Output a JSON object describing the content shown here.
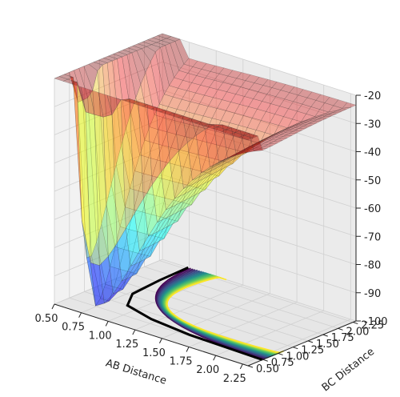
{
  "chart_data": {
    "type": "surface3d",
    "xlabel": "AB Distance",
    "ylabel": "BC Distance",
    "zlabel": "",
    "xlim": [
      0.5,
      2.3
    ],
    "ylim": [
      0.5,
      2.3
    ],
    "zlim": [
      -100,
      -20
    ],
    "x_ticks": [
      "0.50",
      "0.75",
      "1.00",
      "1.25",
      "1.50",
      "1.75",
      "2.00",
      "2.25"
    ],
    "y_ticks": [
      "0.50",
      "0.75",
      "1.00",
      "1.25",
      "1.50",
      "1.75",
      "2.00",
      "2.25"
    ],
    "z_ticks": [
      "-20",
      "-30",
      "-40",
      "-50",
      "-60",
      "-70",
      "-80",
      "-90",
      "-100"
    ],
    "surface": {
      "colormap": "jet",
      "opacity": 0.35,
      "z_range": [
        -104,
        -20
      ],
      "wall_height": -20,
      "wells": [
        {
          "fixed_axis": "x",
          "min_at": 0.74,
          "depth": -104
        },
        {
          "fixed_axis": "y",
          "min_at": 0.74,
          "depth": -104
        }
      ]
    },
    "contours": {
      "colormap": "viridis",
      "projection_plane": "z = -100",
      "levels": [
        -100,
        -95,
        -90,
        -85,
        -80,
        -75,
        -70,
        -65,
        -60,
        -55,
        -50,
        -45,
        -40,
        -35,
        -30,
        -25,
        -20
      ]
    },
    "trajectory": {
      "color": "#000000",
      "description_points": [
        [
          2.3,
          0.74
        ],
        [
          1.6,
          0.78
        ],
        [
          1.2,
          0.86
        ],
        [
          0.9,
          1.0
        ],
        [
          0.78,
          1.3
        ],
        [
          0.75,
          1.8
        ],
        [
          0.74,
          2.3
        ]
      ]
    },
    "grid": true
  }
}
